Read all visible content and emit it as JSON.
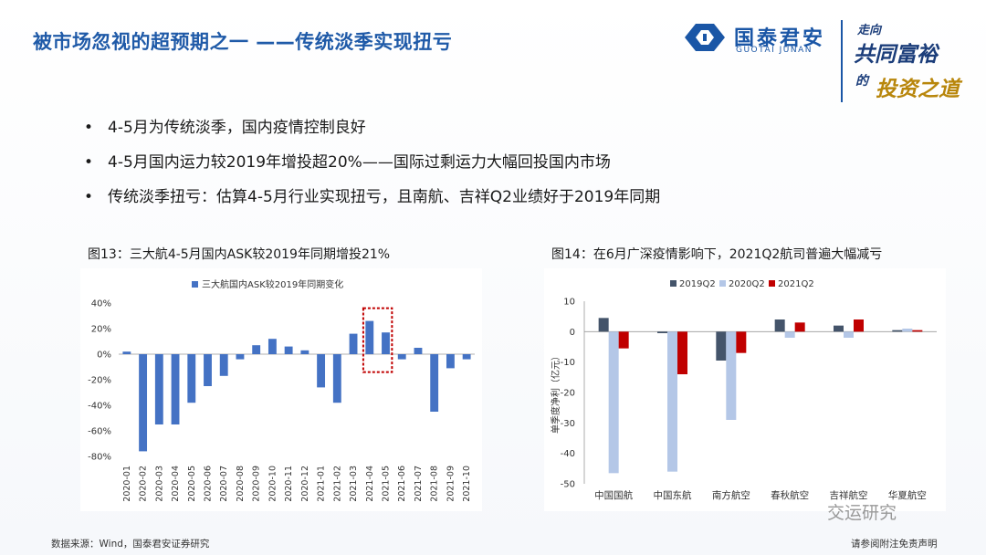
{
  "header": {
    "title": "被市场忽视的超预期之一 ——传统淡季实现扭亏",
    "logo_cn": "国泰君安",
    "logo_en": "GUOTAI JUNAN",
    "slogan_chars": [
      "走向",
      "共同富裕",
      "的",
      "投资之道"
    ]
  },
  "bullets": [
    "4-5月为传统淡季，国内疫情控制良好",
    "4-5月国内运力较2019年增投超20%——国际过剩运力大幅回投国内市场",
    "传统淡季扭亏：估算4-5月行业实现扭亏，且南航、吉祥Q2业绩好于2019年同期"
  ],
  "chart1_caption": "图13：三大航4-5月国内ASK较2019年同期增投21%",
  "chart2_caption": "图14：在6月广深疫情影响下，2021Q2航司普遍大幅减亏",
  "footer": {
    "source": "数据来源：Wind，国泰君安证券研究",
    "disclaimer": "请参阅附注免责声明",
    "watermark": "交运研究"
  },
  "chart_data": [
    {
      "type": "bar",
      "legend": "三大航国内ASK较2019年同期变化",
      "legend_position": "top",
      "categories": [
        "2020-01",
        "2020-02",
        "2020-03",
        "2020-04",
        "2020-05",
        "2020-06",
        "2020-07",
        "2020-08",
        "2020-09",
        "2020-10",
        "2020-11",
        "2020-12",
        "2021-01",
        "2021-02",
        "2021-03",
        "2021-04",
        "2021-05",
        "2021-06",
        "2021-07",
        "2021-08",
        "2021-09",
        "2021-10"
      ],
      "values": [
        2,
        -76,
        -55,
        -55,
        -38,
        -25,
        -17,
        -4,
        7,
        12,
        6,
        3,
        -26,
        -38,
        16,
        26,
        17,
        -4,
        5,
        -45,
        -11,
        -4
      ],
      "yticks": [
        "40%",
        "20%",
        "0%",
        "-20%",
        "-40%",
        "-60%",
        "-80%"
      ],
      "ylim": [
        -80,
        40
      ],
      "highlight_categories": [
        "2021-04",
        "2021-05"
      ],
      "color": "#4472c4"
    },
    {
      "type": "bar",
      "ylabel": "单季度净利（亿元）",
      "legend_position": "top",
      "categories": [
        "中国国航",
        "中国东航",
        "南方航空",
        "春秋航空",
        "吉祥航空",
        "华夏航空"
      ],
      "series": [
        {
          "name": "2019Q2",
          "color": "#44546a",
          "values": [
            4.5,
            -0.5,
            -9.5,
            4,
            2,
            0.5
          ]
        },
        {
          "name": "2020Q2",
          "color": "#b4c7e7",
          "values": [
            -46.5,
            -46,
            -29,
            -2,
            -2,
            1
          ]
        },
        {
          "name": "2021Q2",
          "color": "#c00000",
          "values": [
            -5.5,
            -14,
            -7,
            3,
            4,
            0.5
          ]
        }
      ],
      "yticks": [
        "10",
        "0",
        "-10",
        "-20",
        "-30",
        "-40",
        "-50"
      ],
      "ylim": [
        -50,
        10
      ]
    }
  ]
}
